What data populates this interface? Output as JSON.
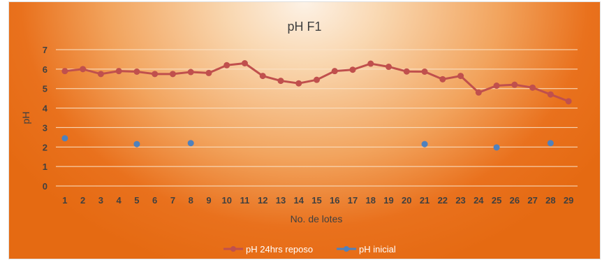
{
  "chart_data": {
    "type": "line",
    "title": "pH F1",
    "xlabel": "No. de lotes",
    "ylabel": "pH",
    "ylim": [
      0,
      7
    ],
    "yticks": [
      "0",
      "1",
      "2",
      "3",
      "4",
      "5",
      "6",
      "7"
    ],
    "categories": [
      "1",
      "2",
      "3",
      "4",
      "5",
      "6",
      "7",
      "8",
      "9",
      "10",
      "11",
      "12",
      "13",
      "14",
      "15",
      "16",
      "17",
      "18",
      "19",
      "20",
      "21",
      "22",
      "23",
      "24",
      "25",
      "26",
      "27",
      "28",
      "29"
    ],
    "grid": true,
    "legend_position": "bottom",
    "series": [
      {
        "name": "pH 24hrs reposo",
        "color": "#c0504d",
        "style": "line-markers",
        "values": [
          5.9,
          6.0,
          5.75,
          5.9,
          5.87,
          5.75,
          5.75,
          5.85,
          5.8,
          6.2,
          6.3,
          5.65,
          5.4,
          5.27,
          5.45,
          5.9,
          5.97,
          6.28,
          6.12,
          5.88,
          5.87,
          5.48,
          5.65,
          4.8,
          5.15,
          5.2,
          5.05,
          4.7,
          4.35
        ]
      },
      {
        "name": "pH inicial",
        "color": "#4f81bd",
        "style": "markers",
        "values": [
          2.45,
          null,
          null,
          null,
          2.15,
          null,
          null,
          2.2,
          null,
          null,
          null,
          null,
          null,
          null,
          null,
          null,
          null,
          null,
          null,
          null,
          2.15,
          null,
          null,
          null,
          1.98,
          null,
          null,
          2.2,
          null
        ]
      }
    ]
  }
}
